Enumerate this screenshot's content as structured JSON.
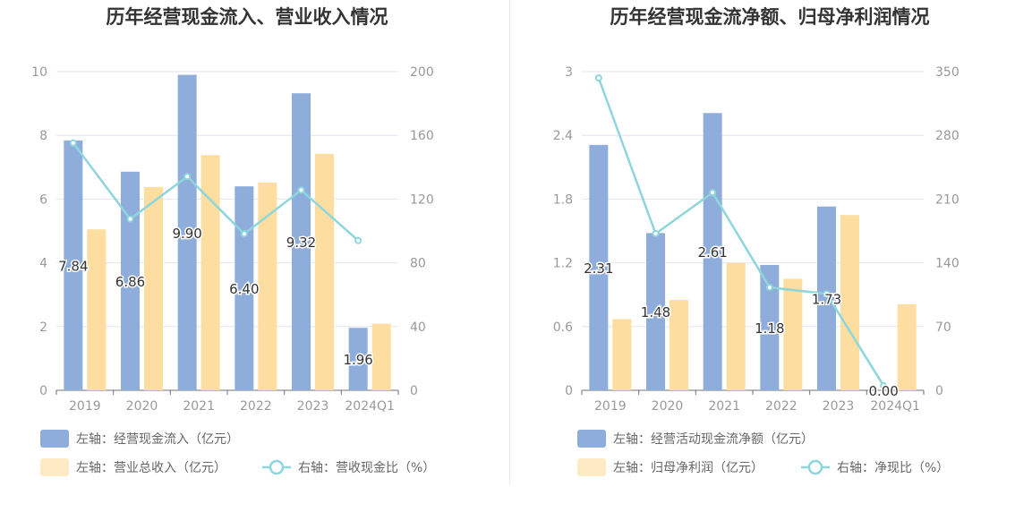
{
  "colors": {
    "bar_left": "#8eaddb",
    "bar_right": "#fedda0",
    "line": "#8dd6dc",
    "grid": "#e3e6ef",
    "axis": "#999999",
    "title": "#333333",
    "label": "#333333"
  },
  "chart_data": [
    {
      "type": "bar",
      "title": "历年经营现金流入、营业收入情况",
      "categories": [
        "2019",
        "2020",
        "2021",
        "2022",
        "2023",
        "2024Q1"
      ],
      "y_left": {
        "ticks": [
          "0",
          "2",
          "4",
          "6",
          "8",
          "10"
        ],
        "ylim": [
          0,
          10
        ]
      },
      "y_right": {
        "ticks": [
          "0",
          "40",
          "80",
          "120",
          "160",
          "200"
        ],
        "ylim": [
          0,
          200
        ]
      },
      "grid": true,
      "legend_placement": "bottom",
      "series": [
        {
          "name": "左轴：经营现金流入（亿元）",
          "type": "bar",
          "axis": "left",
          "values": [
            7.84,
            6.86,
            9.9,
            6.4,
            9.32,
            1.96
          ],
          "labels": [
            "7.84",
            "6.86",
            "9.90",
            "6.40",
            "9.32",
            "1.96"
          ]
        },
        {
          "name": "左轴：营业总收入（亿元）",
          "type": "bar",
          "axis": "left",
          "values": [
            5.05,
            6.38,
            7.38,
            6.52,
            7.42,
            2.09
          ]
        },
        {
          "name": "右轴：营收现金比（%）",
          "type": "line",
          "axis": "right",
          "values": [
            155.2,
            107.5,
            134.1,
            98.2,
            125.6,
            94.0
          ]
        }
      ]
    },
    {
      "type": "bar",
      "title": "历年经营现金流净额、归母净利润情况",
      "categories": [
        "2019",
        "2020",
        "2021",
        "2022",
        "2023",
        "2024Q1"
      ],
      "y_left": {
        "ticks": [
          "0",
          "0.6",
          "1.2",
          "1.8",
          "2.4",
          "3"
        ],
        "ylim": [
          0,
          3
        ]
      },
      "y_right": {
        "ticks": [
          "0",
          "70",
          "140",
          "210",
          "280",
          "350"
        ],
        "ylim": [
          0,
          350
        ]
      },
      "grid": true,
      "legend_placement": "bottom",
      "series": [
        {
          "name": "左轴：经营活动现金流净额（亿元）",
          "type": "bar",
          "axis": "left",
          "values": [
            2.31,
            1.48,
            2.61,
            1.18,
            1.73,
            0.0
          ],
          "labels": [
            "2.31",
            "1.48",
            "2.61",
            "1.18",
            "1.73",
            "0.00"
          ]
        },
        {
          "name": "左轴：归母净利润（亿元）",
          "type": "bar",
          "axis": "left",
          "values": [
            0.67,
            0.85,
            1.2,
            1.05,
            1.65,
            0.81
          ]
        },
        {
          "name": "右轴：净现比（%）",
          "type": "line",
          "axis": "right",
          "values": [
            343,
            172,
            217,
            113,
            106,
            5
          ]
        }
      ]
    }
  ]
}
